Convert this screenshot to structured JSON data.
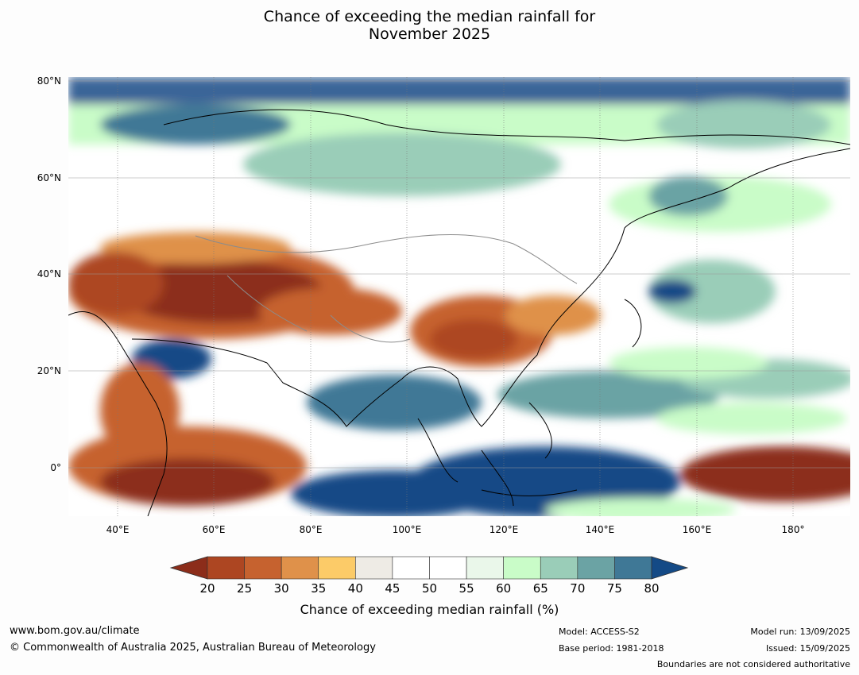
{
  "title_line1": "Chance of exceeding the median rainfall for",
  "title_line2": "November 2025",
  "lat_labels": [
    "80°N",
    "60°N",
    "40°N",
    "20°N",
    "0°"
  ],
  "lon_labels": [
    "40°E",
    "60°E",
    "80°E",
    "100°E",
    "120°E",
    "140°E",
    "160°E",
    "180°"
  ],
  "colorbar": {
    "ticks": [
      "20",
      "25",
      "30",
      "35",
      "40",
      "45",
      "50",
      "55",
      "60",
      "65",
      "70",
      "75",
      "80"
    ],
    "colors": [
      "#8c2d1a",
      "#ad4622",
      "#c6622f",
      "#df914a",
      "#fccb68",
      "#eeebe5",
      "#ffffff",
      "#ffffff",
      "#eaf7ea",
      "#c9fcc8",
      "#9acdb8",
      "#6ba3a4",
      "#3f7896",
      "#144a86"
    ],
    "label": "Chance of exceeding median rainfall (%)"
  },
  "footer": {
    "website": "www.bom.gov.au/climate",
    "copyright": "© Commonwealth of Australia 2025, Australian Bureau of Meteorology",
    "model": "Model: ACCESS-S2",
    "base_period": "Base period: 1981-2018",
    "model_run": "Model run: 13/09/2025",
    "issued": "Issued: 15/09/2025",
    "disclaimer": "Boundaries are not considered authoritative"
  }
}
